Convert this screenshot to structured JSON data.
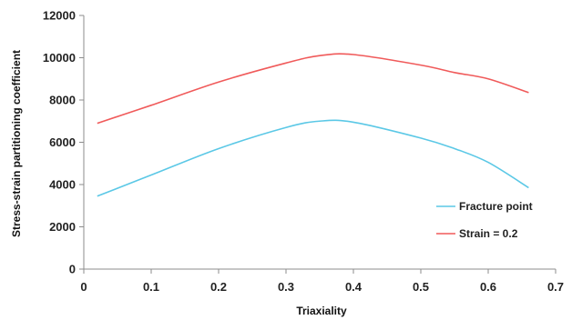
{
  "chart_data": {
    "type": "line",
    "xlabel": "Triaxiality",
    "ylabel": "Stress-strain partitioning coefficient",
    "xlim": [
      0,
      0.7
    ],
    "ylim": [
      0,
      12000
    ],
    "x_ticks": [
      "0",
      "0.1",
      "0.2",
      "0.3",
      "0.4",
      "0.5",
      "0.6",
      "0.7"
    ],
    "y_ticks": [
      "0",
      "2000",
      "4000",
      "6000",
      "8000",
      "10000",
      "12000"
    ],
    "x_tick_values": [
      0,
      0.1,
      0.2,
      0.3,
      0.4,
      0.5,
      0.6,
      0.7
    ],
    "y_tick_values": [
      0,
      2000,
      4000,
      6000,
      8000,
      10000,
      12000
    ],
    "grid": false,
    "legend_position": "bottom-right",
    "series": [
      {
        "name": "Fracture point",
        "color": "#5bc8e6",
        "points": [
          [
            0.02,
            3450
          ],
          [
            0.1,
            4450
          ],
          [
            0.2,
            5700
          ],
          [
            0.3,
            6700
          ],
          [
            0.35,
            7000
          ],
          [
            0.4,
            6950
          ],
          [
            0.5,
            6200
          ],
          [
            0.55,
            5700
          ],
          [
            0.6,
            5050
          ],
          [
            0.66,
            3850
          ]
        ]
      },
      {
        "name": "Strain = 0.2",
        "color": "#f05a5a",
        "points": [
          [
            0.02,
            6900
          ],
          [
            0.1,
            7750
          ],
          [
            0.2,
            8850
          ],
          [
            0.3,
            9750
          ],
          [
            0.35,
            10100
          ],
          [
            0.4,
            10150
          ],
          [
            0.5,
            9650
          ],
          [
            0.55,
            9300
          ],
          [
            0.6,
            9000
          ],
          [
            0.66,
            8350
          ]
        ]
      }
    ]
  }
}
